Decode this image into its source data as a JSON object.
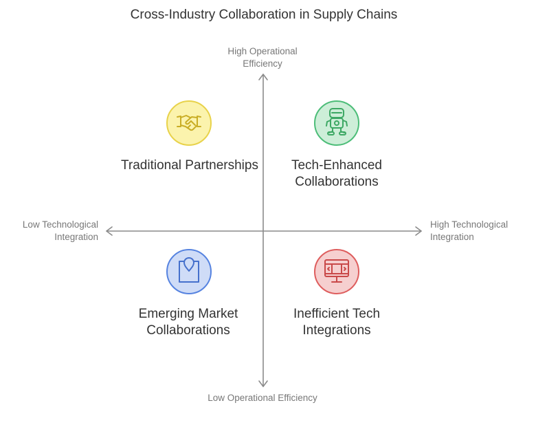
{
  "title": "Cross-Industry Collaboration in Supply Chains",
  "axes": {
    "top": "High Operational Efficiency",
    "bottom": "Low Operational Efficiency",
    "left": "Low Technological Integration",
    "right": "High Technological Integration"
  },
  "quadrants": {
    "top_left": {
      "label": "Traditional Partnerships",
      "icon": "handshake-icon",
      "color": "#e8d24a"
    },
    "top_right": {
      "label": "Tech-Enhanced Collaborations",
      "icon": "robot-icon",
      "color": "#4cbd78"
    },
    "bottom_left": {
      "label": "Emerging Market Collaborations",
      "icon": "location-pin-icon",
      "color": "#5683e0"
    },
    "bottom_right": {
      "label": "Inefficient Tech Integrations",
      "icon": "monitor-icon",
      "color": "#de5d5d"
    }
  }
}
